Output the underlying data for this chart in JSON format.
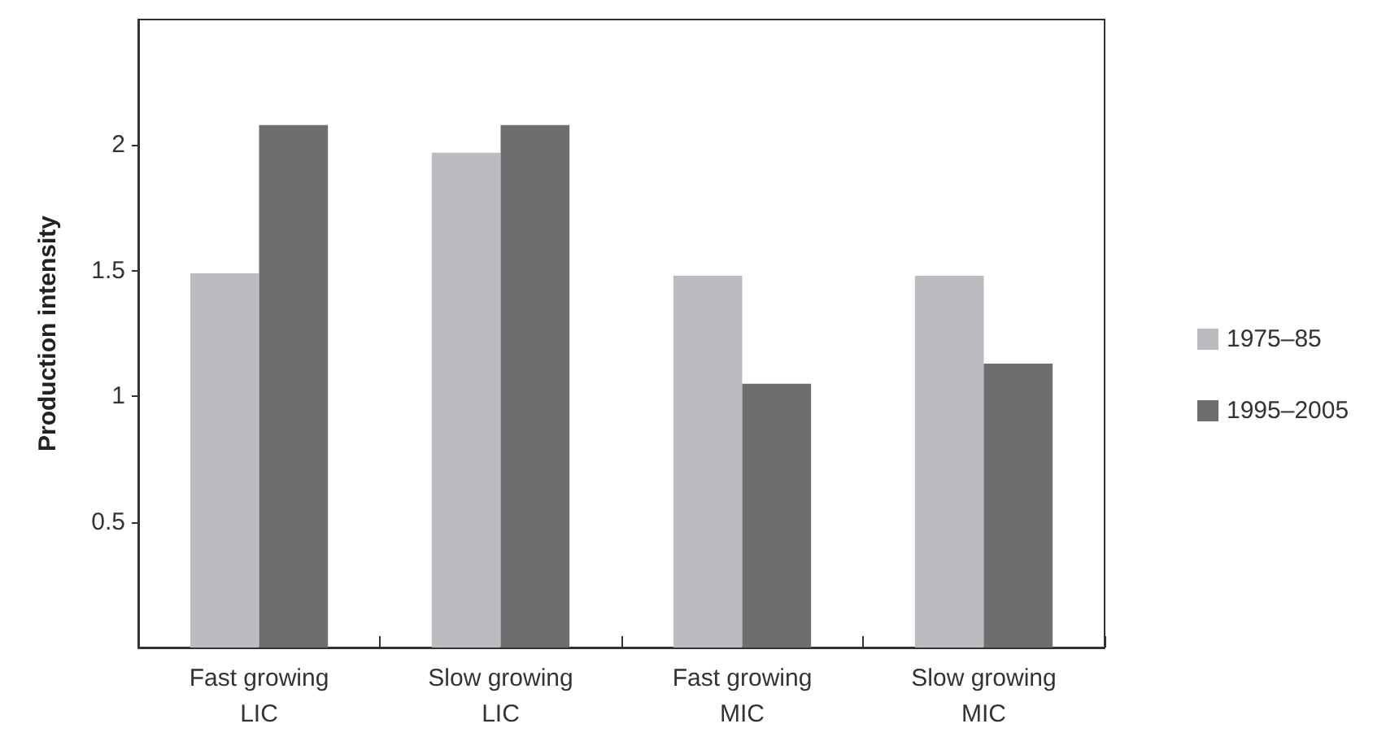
{
  "chart_data": {
    "type": "bar",
    "ylabel": "Production intensity",
    "categories": [
      "Fast growing\nLIC",
      "Slow growing\nLIC",
      "Fast growing\nMIC",
      "Slow growing\nMIC"
    ],
    "series": [
      {
        "name": "1975–85",
        "color": "#bbbcbf",
        "values": [
          1.49,
          1.97,
          1.48,
          1.48
        ]
      },
      {
        "name": "1995–2005",
        "color": "#6d6e70",
        "values": [
          2.08,
          2.08,
          1.05,
          1.13
        ]
      }
    ],
    "ylim": [
      0,
      2.5
    ],
    "yticks": [
      0.5,
      1,
      1.5,
      2
    ],
    "grid": false,
    "legend": "right"
  }
}
